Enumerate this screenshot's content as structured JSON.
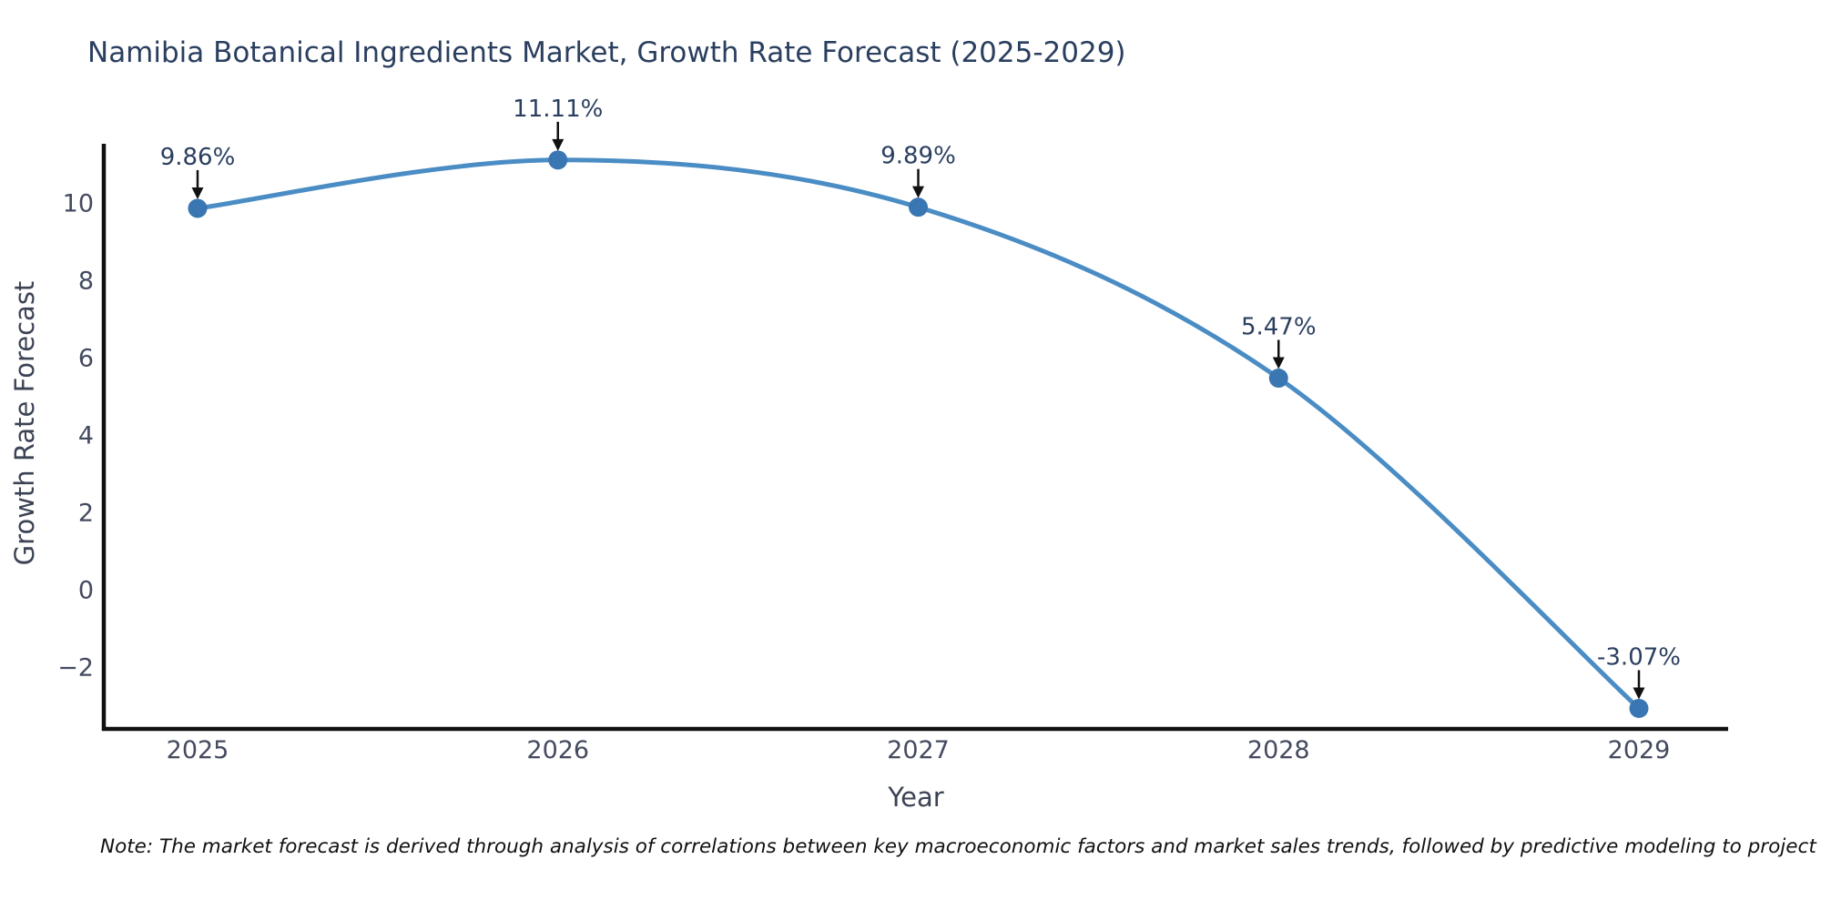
{
  "title": "Namibia Botanical Ingredients Market, Growth Rate Forecast (2025-2029)",
  "note": "Note: The market forecast is derived through analysis of correlations between key macroeconomic factors and market sales trends, followed by predictive modeling to project future sales",
  "chart_data": {
    "type": "line",
    "line_shape": "spline",
    "title": "Namibia Botanical Ingredients Market, Growth Rate Forecast (2025-2029)",
    "xlabel": "Year",
    "ylabel": "Growth Rate Forecast",
    "x": [
      "2025",
      "2026",
      "2027",
      "2028",
      "2029"
    ],
    "values": [
      9.86,
      11.11,
      9.89,
      5.47,
      -3.07
    ],
    "point_labels": [
      "9.86%",
      "11.11%",
      "9.89%",
      "5.47%",
      "-3.07%"
    ],
    "ytick_values": [
      10,
      8,
      6,
      4,
      2,
      0,
      -2
    ],
    "ytick_labels": [
      "10",
      "8",
      "6",
      "4",
      "2",
      "0",
      "−2"
    ],
    "ylim": [
      -3.6,
      11.9
    ],
    "grid": "off",
    "legend": "none",
    "colors": {
      "line": "#4a8cc4",
      "marker": "#3a76b2",
      "axis": "#111111",
      "title_text": "#2a3f5f",
      "tick_text": "#444b5f",
      "annotation_text": "#2a3f5f",
      "arrow": "#111111"
    }
  }
}
